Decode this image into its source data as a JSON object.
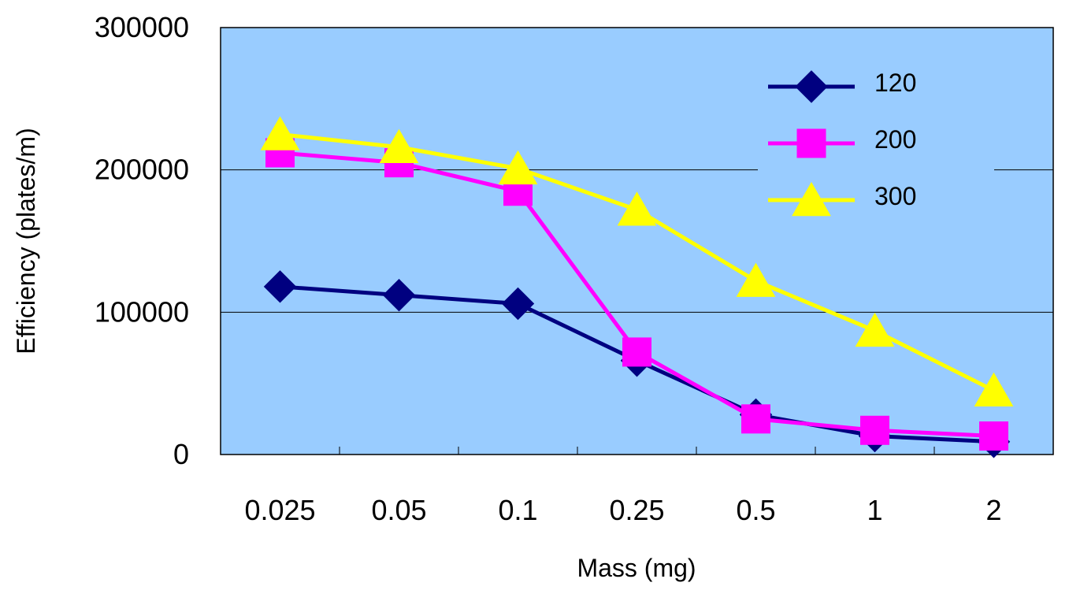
{
  "chart_data": {
    "type": "line",
    "title": "",
    "xlabel": "Mass (mg)",
    "ylabel": "Efficiency (plates/m)",
    "categories": [
      "0.025",
      "0.05",
      "0.1",
      "0.25",
      "0.5",
      "1",
      "2"
    ],
    "ylim": [
      0,
      300000
    ],
    "yticks": [
      "0",
      "100000",
      "200000",
      "300000"
    ],
    "grid": "horizontal",
    "legend_position": "top-right",
    "plot_background": "#99ccff",
    "series": [
      {
        "name": "120",
        "color": "#000080",
        "marker": "diamond",
        "values": [
          118000,
          112000,
          106000,
          66000,
          28000,
          13000,
          9000
        ]
      },
      {
        "name": "200",
        "color": "#ff00ff",
        "marker": "square",
        "values": [
          212000,
          205000,
          185000,
          72000,
          25000,
          17000,
          13000
        ]
      },
      {
        "name": "300",
        "color": "#ffff00",
        "marker": "triangle",
        "values": [
          225000,
          216000,
          201000,
          172000,
          122000,
          87000,
          45000
        ]
      }
    ]
  }
}
